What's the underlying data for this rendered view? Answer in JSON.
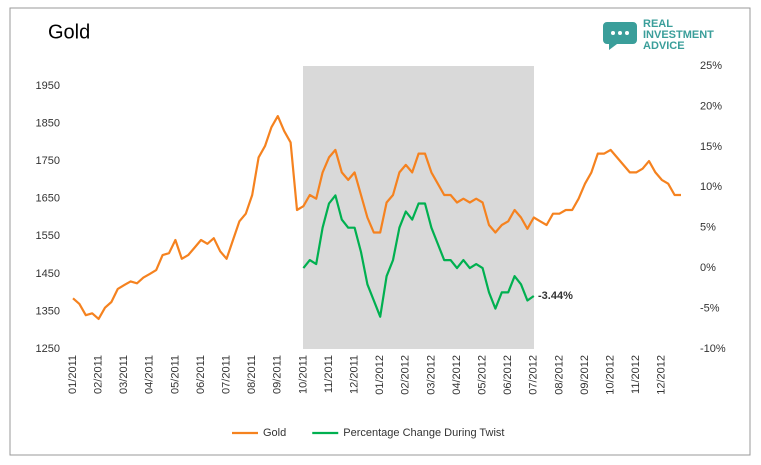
{
  "logo": [
    "REAL",
    "INVESTMENT",
    "ADVICE"
  ],
  "chart_data": {
    "type": "line",
    "title": "Gold",
    "annotation": "-3.44%",
    "categories": [
      "01/2011",
      null,
      null,
      null,
      "02/2011",
      null,
      null,
      null,
      "03/2011",
      null,
      null,
      null,
      "04/2011",
      null,
      null,
      null,
      "05/2011",
      null,
      null,
      null,
      "06/2011",
      null,
      null,
      null,
      "07/2011",
      null,
      null,
      null,
      "08/2011",
      null,
      null,
      null,
      "09/2011",
      null,
      null,
      null,
      "10/2011",
      null,
      null,
      null,
      "11/2011",
      null,
      null,
      null,
      "12/2011",
      null,
      null,
      null,
      "01/2012",
      null,
      null,
      null,
      "02/2012",
      null,
      null,
      null,
      "03/2012",
      null,
      null,
      null,
      "04/2012",
      null,
      null,
      null,
      "05/2012",
      null,
      null,
      null,
      "06/2012",
      null,
      null,
      null,
      "07/2012",
      null,
      null,
      null,
      "08/2012",
      null,
      null,
      null,
      "09/2012",
      null,
      null,
      null,
      "10/2012",
      null,
      null,
      null,
      "11/2012",
      null,
      null,
      null,
      "12/2012",
      null,
      null,
      null
    ],
    "series": [
      {
        "name": "Gold",
        "color": "#f5821f",
        "values": [
          1385,
          1370,
          1340,
          1345,
          1330,
          1360,
          1375,
          1410,
          1420,
          1430,
          1425,
          1440,
          1450,
          1460,
          1500,
          1505,
          1540,
          1490,
          1500,
          1520,
          1540,
          1530,
          1545,
          1510,
          1490,
          1540,
          1590,
          1610,
          1660,
          1760,
          1790,
          1840,
          1870,
          1830,
          1800,
          1620,
          1630,
          1660,
          1650,
          1720,
          1760,
          1780,
          1720,
          1700,
          1720,
          1660,
          1600,
          1560,
          1560,
          1640,
          1660,
          1720,
          1740,
          1720,
          1770,
          1770,
          1720,
          1690,
          1660,
          1660,
          1640,
          1650,
          1640,
          1650,
          1640,
          1580,
          1560,
          1580,
          1590,
          1620,
          1600,
          1570,
          1600,
          1590,
          1580,
          1610,
          1610,
          1620,
          1620,
          1650,
          1690,
          1720,
          1770,
          1770,
          1780,
          1760,
          1740,
          1720,
          1720,
          1730,
          1750,
          1720,
          1700,
          1690,
          1660,
          1660
        ]
      },
      {
        "name": "Percentage Change During Twist",
        "color": "#00b050",
        "axis": "y2",
        "values": [
          null,
          null,
          null,
          null,
          null,
          null,
          null,
          null,
          null,
          null,
          null,
          null,
          null,
          null,
          null,
          null,
          null,
          null,
          null,
          null,
          null,
          null,
          null,
          null,
          null,
          null,
          null,
          null,
          null,
          null,
          null,
          null,
          null,
          null,
          null,
          null,
          0,
          1,
          0.5,
          5,
          8,
          9,
          6,
          5,
          5,
          2,
          -2,
          -4,
          -6,
          -1,
          1,
          5,
          7,
          6,
          8,
          8,
          5,
          3,
          1,
          1,
          0,
          1,
          0,
          0.5,
          0,
          -3,
          -5,
          -3,
          -3,
          -1,
          -2,
          -4,
          -3.44,
          null,
          null,
          null,
          null,
          null,
          null,
          null,
          null,
          null,
          null,
          null,
          null,
          null,
          null,
          null,
          null,
          null,
          null,
          null,
          null,
          null,
          null,
          null
        ]
      }
    ],
    "ylim": [
      1250,
      1950
    ],
    "yticks": [
      1250,
      1350,
      1450,
      1550,
      1650,
      1750,
      1850,
      1950
    ],
    "y2lim": [
      -10,
      25
    ],
    "y2ticks": [
      {
        "value": -10,
        "label": "-10%"
      },
      {
        "value": -5,
        "label": "-5%"
      },
      {
        "value": 0,
        "label": "0%"
      },
      {
        "value": 5,
        "label": "5%"
      },
      {
        "value": 10,
        "label": "10%"
      },
      {
        "value": 15,
        "label": "15%"
      },
      {
        "value": 20,
        "label": "20%"
      },
      {
        "value": 25,
        "label": "25%"
      }
    ],
    "grid": false
  }
}
